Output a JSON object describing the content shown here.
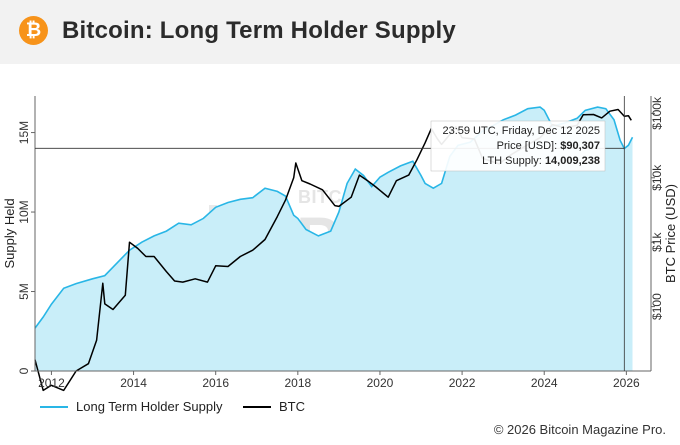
{
  "header": {
    "logo_glyph": "₿",
    "title": "Bitcoin: Long Term Holder Supply"
  },
  "watermark": {
    "line1": "BITCOIN MAGAZINE",
    "line2": "PRO"
  },
  "tooltip": {
    "timestamp": "23:59 UTC, Friday, Dec 12 2025",
    "price_label": "Price [USD]: ",
    "price_value": "$90,307",
    "supply_label": "LTH Supply: ",
    "supply_value": "14,009,238"
  },
  "legend": {
    "items": [
      {
        "label": "Long Term Holder Supply",
        "color": "#29b6e6"
      },
      {
        "label": "BTC",
        "color": "#000000"
      }
    ]
  },
  "footer": {
    "copyright": "© 2026 Bitcoin Magazine Pro."
  },
  "colors": {
    "lth_line": "#29b6e6",
    "lth_fill": "#c9eef9",
    "btc_line": "#000000",
    "crosshair": "#333333",
    "axis": "#666666"
  },
  "chart_data": {
    "type": "area",
    "title": "Bitcoin: Long Term Holder Supply",
    "xlabel": "",
    "ylabel": "Supply Held",
    "y2label": "BTC Price (USD)",
    "xlim": [
      2011.6,
      2026.6
    ],
    "ylim": [
      0,
      17300000
    ],
    "y2lim_log10": [
      1.0,
      5.27
    ],
    "x_ticks": [
      2012,
      2014,
      2016,
      2018,
      2020,
      2022,
      2024,
      2026
    ],
    "x_tick_labels": [
      "2012",
      "2014",
      "2016",
      "2018",
      "2020",
      "2022",
      "2024",
      "2026"
    ],
    "y_ticks": [
      0,
      5000000,
      10000000,
      15000000
    ],
    "y_tick_labels": [
      "0",
      "5M",
      "10M",
      "15M"
    ],
    "y2_ticks": [
      100,
      1000,
      10000,
      100000
    ],
    "y2_tick_labels": [
      "$100",
      "$1k",
      "$10k",
      "$100k"
    ],
    "crosshair": {
      "x": 2025.95,
      "y": 14009238
    },
    "series": [
      {
        "name": "Long Term Holder Supply",
        "axis": "left",
        "x": [
          2011.6,
          2011.8,
          2012.0,
          2012.3,
          2012.6,
          2013.0,
          2013.3,
          2013.6,
          2013.9,
          2014.2,
          2014.5,
          2014.8,
          2015.1,
          2015.4,
          2015.7,
          2016.0,
          2016.3,
          2016.6,
          2016.9,
          2017.2,
          2017.5,
          2017.7,
          2017.9,
          2018.0,
          2018.2,
          2018.5,
          2018.8,
          2019.0,
          2019.2,
          2019.4,
          2019.6,
          2019.8,
          2020.0,
          2020.2,
          2020.5,
          2020.8,
          2021.0,
          2021.1,
          2021.3,
          2021.5,
          2021.7,
          2021.9,
          2022.2,
          2022.5,
          2022.8,
          2023.0,
          2023.3,
          2023.6,
          2023.9,
          2024.0,
          2024.2,
          2024.5,
          2024.8,
          2025.0,
          2025.3,
          2025.5,
          2025.7,
          2025.85,
          2025.95,
          2026.05,
          2026.15
        ],
        "values": [
          2700000,
          3400000,
          4200000,
          5200000,
          5500000,
          5800000,
          6000000,
          6800000,
          7600000,
          8100000,
          8500000,
          8800000,
          9300000,
          9200000,
          9600000,
          10300000,
          10600000,
          10800000,
          10900000,
          11500000,
          11300000,
          11000000,
          9800000,
          9600000,
          8900000,
          8500000,
          8800000,
          10000000,
          11800000,
          12700000,
          12300000,
          11600000,
          12200000,
          12500000,
          12900000,
          13200000,
          12300000,
          11800000,
          11500000,
          11800000,
          13500000,
          14200000,
          14400000,
          15100000,
          15500000,
          15800000,
          16100000,
          16500000,
          16600000,
          16400000,
          15400000,
          15600000,
          15900000,
          16400000,
          16600000,
          16500000,
          15800000,
          14500000,
          14000000,
          14200000,
          14700000
        ]
      },
      {
        "name": "BTC",
        "axis": "right",
        "x": [
          2011.6,
          2011.8,
          2012.0,
          2012.3,
          2012.6,
          2012.9,
          2013.1,
          2013.25,
          2013.3,
          2013.5,
          2013.8,
          2013.9,
          2014.1,
          2014.3,
          2014.5,
          2014.8,
          2015.0,
          2015.2,
          2015.5,
          2015.8,
          2016.0,
          2016.3,
          2016.6,
          2016.9,
          2017.2,
          2017.5,
          2017.7,
          2017.9,
          2017.95,
          2018.1,
          2018.3,
          2018.6,
          2018.9,
          2019.0,
          2019.3,
          2019.5,
          2019.7,
          2019.9,
          2020.2,
          2020.4,
          2020.7,
          2020.9,
          2021.1,
          2021.25,
          2021.4,
          2021.5,
          2021.7,
          2021.85,
          2022.0,
          2022.3,
          2022.5,
          2022.9,
          2023.2,
          2023.5,
          2023.9,
          2024.2,
          2024.5,
          2024.8,
          2024.95,
          2025.2,
          2025.4,
          2025.6,
          2025.8,
          2025.95,
          2026.05,
          2026.12
        ],
        "values": [
          15,
          5,
          6,
          5,
          10,
          13,
          30,
          230,
          110,
          90,
          150,
          1000,
          800,
          600,
          600,
          350,
          250,
          240,
          270,
          240,
          430,
          420,
          600,
          750,
          1100,
          2500,
          4500,
          10000,
          17000,
          9000,
          8000,
          6500,
          3700,
          3600,
          5000,
          11000,
          9000,
          7200,
          5000,
          9000,
          11000,
          19000,
          35000,
          58000,
          40000,
          33000,
          47000,
          62000,
          42000,
          40000,
          20000,
          16500,
          23000,
          30000,
          42000,
          67000,
          60000,
          65000,
          95000,
          96000,
          85000,
          108000,
          115000,
          90307,
          92000,
          78000
        ]
      }
    ]
  }
}
